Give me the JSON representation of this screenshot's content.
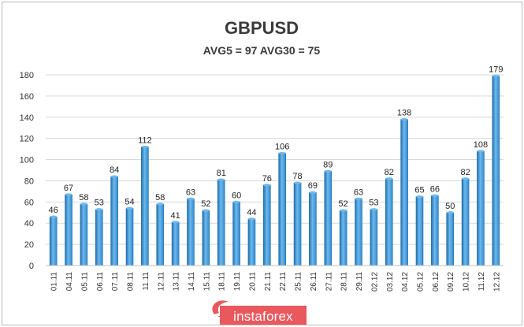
{
  "chart_data": {
    "type": "bar",
    "title": "GBPUSD",
    "subtitle": "AVG5 = 97 AVG30 = 75",
    "categories": [
      "01.11",
      "04.11",
      "05.11",
      "06.11",
      "07.11",
      "08.11",
      "11.11",
      "12.11",
      "13.11",
      "14.11",
      "15.11",
      "18.11",
      "19.11",
      "20.11",
      "21.11",
      "22.11",
      "25.11",
      "26.11",
      "27.11",
      "28.11",
      "29.11",
      "02.12",
      "03.12",
      "04.12",
      "05.12",
      "06.12",
      "09.12",
      "10.12",
      "11.12",
      "12.12"
    ],
    "values": [
      46,
      67,
      58,
      53,
      84,
      54,
      112,
      58,
      41,
      63,
      52,
      81,
      60,
      44,
      76,
      106,
      78,
      69,
      89,
      52,
      63,
      53,
      82,
      138,
      65,
      66,
      50,
      82,
      108,
      179
    ],
    "ylim": [
      0,
      180
    ],
    "yticks": [
      0,
      20,
      40,
      60,
      80,
      100,
      120,
      140,
      160,
      180
    ],
    "xlabel": "",
    "ylabel": "",
    "grid": true,
    "legend": "none",
    "colors": {
      "bar": "#2e8bd0",
      "bar_light": "#6fb8ec",
      "bar_dark": "#1f6fad",
      "grid": "#d9d9d9",
      "watermark_bg": "#e8585d",
      "watermark_logo": "#e8585d"
    }
  },
  "watermark": {
    "text": "instaforex",
    "logo_icon": "instaforex-swirl-icon"
  }
}
